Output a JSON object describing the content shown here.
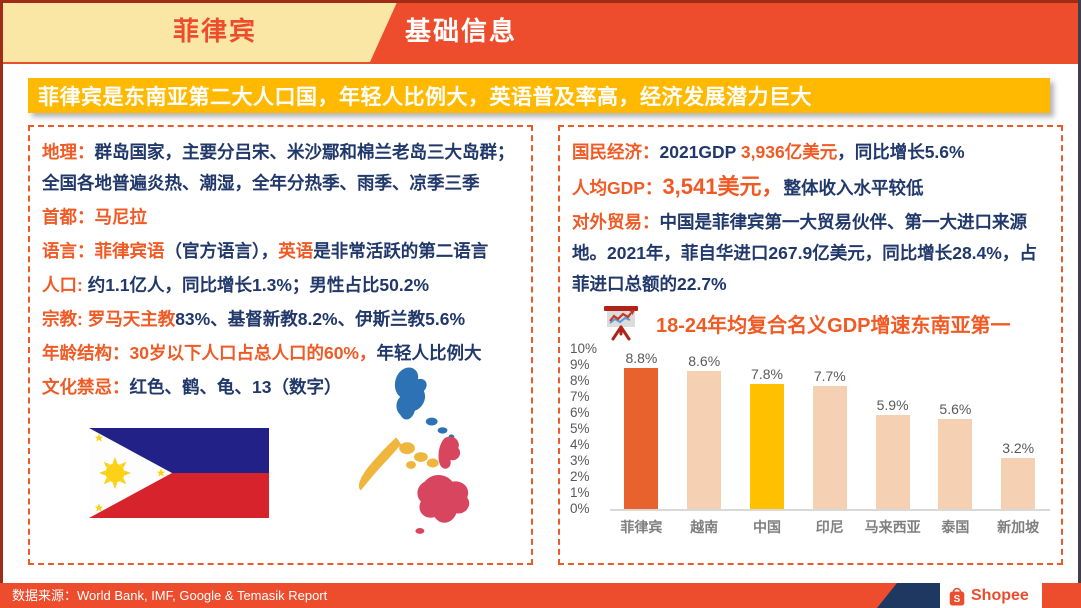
{
  "header": {
    "country_tab": "菲律宾",
    "section_title": "基础信息"
  },
  "banner": {
    "text": "菲律宾是东南亚第二大人口国，年轻人比例大，英语普及率高，经济发展潜力巨大"
  },
  "left_panel": {
    "geography_label": "地理：",
    "geography_text": "群岛国家，主要分吕宋、米沙鄢和棉兰老岛三大岛群；全国各地普遍炎热、潮湿，全年分热季、雨季、凉季三季",
    "capital_label": "首都：",
    "capital_value": "马尼拉",
    "language_label": "语言：",
    "language_value1": "菲律宾语",
    "language_mid": "（官方语言），",
    "language_value2": "英语",
    "language_tail": "是非常活跃的第二语言",
    "population_label": "人口: ",
    "population_text": "约1.1亿人，同比增长1.3%；男性占比50.2%",
    "religion_label": "宗教: ",
    "religion_highlight": "罗马天主教",
    "religion_text": "83%、基督新教8.2%、伊斯兰教5.6%",
    "age_label": "年龄结构：",
    "age_highlight": "30岁以下人口占总人口的60%，",
    "age_text": "年轻人比例大",
    "taboo_label": "文化禁忌：",
    "taboo_text": "红色、鹤、龟、13（数字）"
  },
  "right_panel": {
    "economy_label": "国民经济：",
    "economy_pre": "2021GDP ",
    "economy_value": "3,936亿美元",
    "economy_tail": "，同比增长5.6%",
    "gdp_label": "人均GDP：",
    "gdp_value": "3,541美元，",
    "gdp_tail": "整体收入水平较低",
    "trade_label": "对外贸易：",
    "trade_text": "中国是菲律宾第一大贸易伙伴、第一大进口来源地。2021年，菲自华进口267.9亿美元，同比增长28.4%，占菲进口总额的22.7%"
  },
  "chart_data": {
    "type": "bar",
    "title": "18-24年均复合名义GDP增速东南亚第一",
    "categories": [
      "菲律宾",
      "越南",
      "中国",
      "印尼",
      "马来西亚",
      "泰国",
      "新加坡"
    ],
    "values": [
      8.8,
      8.6,
      7.8,
      7.7,
      5.9,
      5.6,
      3.2
    ],
    "labels": [
      "8.8%",
      "8.6%",
      "7.8%",
      "7.7%",
      "5.9%",
      "5.6%",
      "3.2%"
    ],
    "bar_colors": [
      "#E8622D",
      "#F6D0B2",
      "#FFC000",
      "#F6D0B2",
      "#F6D0B2",
      "#F6D0B2",
      "#F6D0B2"
    ],
    "ylim": [
      0,
      10
    ],
    "ytick_step": 1,
    "ytick_suffix": "%",
    "grid": false,
    "legend": null
  },
  "icons": {
    "chart_board_icon": "presentation-board-with-trend-lines",
    "shopee_bag_icon": "shopping-bag-with-s",
    "philippines_flag": "philippine-flag",
    "philippines_map": "philippine-archipelago-map"
  },
  "footer": {
    "source_label": "数据来源：",
    "source_text": "World Bank, IMF, Google & Temasik Report",
    "brand": "Shopee",
    "logo_s": "S"
  },
  "colors": {
    "shopee_orange": "#EE4D2D",
    "banner_gold": "#FFB900",
    "cream": "#FAE7A5",
    "navy_text": "#21386B",
    "orange_text": "#F05A24",
    "dark_red_edge": "#A02C17",
    "bar_highlight": "#E8622D",
    "bar_china": "#FFC000",
    "bar_default": "#F6D0B2"
  }
}
